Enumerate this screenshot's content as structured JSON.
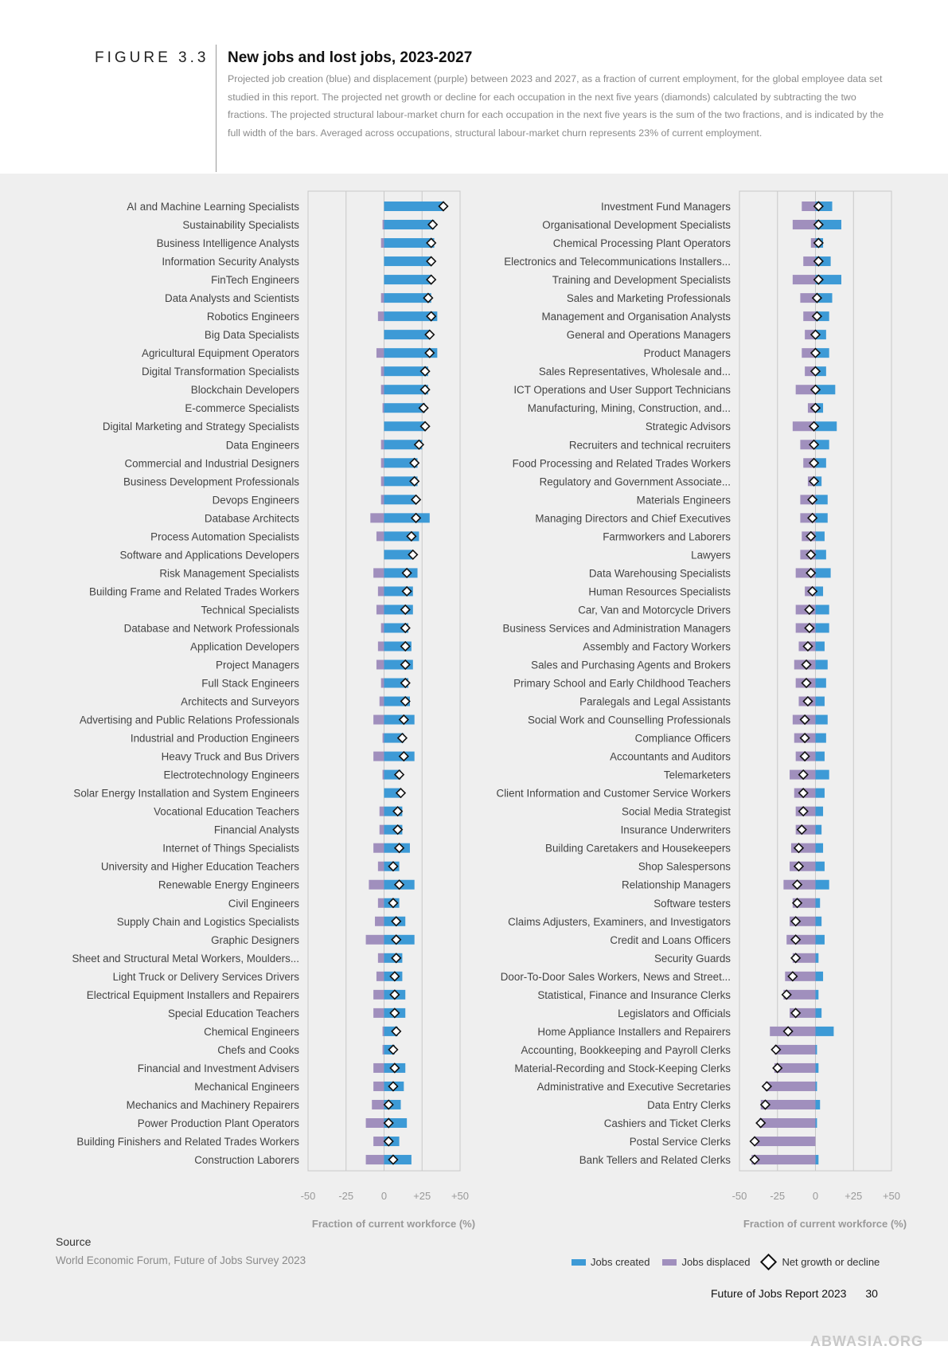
{
  "figure_label": "FIGURE 3.3",
  "title": "New jobs and lost jobs, 2023-2027",
  "subtitle": "Projected job creation (blue) and displacement (purple) between 2023 and 2027, as a fraction of current employment, for the global employee data set studied in this report. The projected net growth or decline for each occupation in the next five years (diamonds) calculated by subtracting the two fractions. The projected structural labour-market churn for each occupation in the next five years is the sum of the two fractions, and is indicated by the full width of the bars. Averaged across occupations, structural labour-market churn represents 23% of current employment.",
  "source_heading": "Source",
  "source_text": "World Economic Forum, Future of Jobs Survey 2023",
  "legend": {
    "created": "Jobs created",
    "displaced": "Jobs displaced",
    "net": "Net growth or decline"
  },
  "footer": {
    "report": "Future of Jobs Report 2023",
    "page": "30"
  },
  "watermark": "ABWASIA.ORG",
  "colors": {
    "created": "#3d9ad6",
    "displaced": "#a08fbd",
    "background": "#efefef"
  },
  "chart_data": [
    {
      "type": "bar",
      "xlabel": "Fraction of current workforce (%)",
      "xlim": [
        -50,
        50
      ],
      "xticks": [
        "-50",
        "-25",
        "0",
        "+25",
        "+50"
      ],
      "categories": [
        "AI and Machine Learning Specialists",
        "Sustainability Specialists",
        "Business Intelligence Analysts",
        "Information Security Analysts",
        "FinTech Engineers",
        "Data Analysts and Scientists",
        "Robotics Engineers",
        "Big Data Specialists",
        "Agricultural Equipment Operators",
        "Digital Transformation Specialists",
        "Blockchain Developers",
        "E-commerce Specialists",
        "Digital Marketing and Strategy Specialists",
        "Data Engineers",
        "Commercial and Industrial Designers",
        "Business Development Professionals",
        "Devops Engineers",
        "Database Architects",
        "Process Automation Specialists",
        "Software and Applications Developers",
        "Risk Management Specialists",
        "Building Frame and Related Trades Workers",
        "Technical Specialists",
        "Database and Network Professionals",
        "Application Developers",
        "Project Managers",
        "Full Stack Engineers",
        "Architects and Surveyors",
        "Advertising and Public Relations Professionals",
        "Industrial and Production Engineers",
        "Heavy Truck and Bus Drivers",
        "Electrotechnology Engineers",
        "Solar Energy Installation and System Engineers",
        "Vocational Education Teachers",
        "Financial Analysts",
        "Internet of Things Specialists",
        "University and Higher Education Teachers",
        "Renewable Energy Engineers",
        "Civil Engineers",
        "Supply Chain and Logistics Specialists",
        "Graphic Designers",
        "Sheet and Structural Metal Workers, Moulders...",
        "Light Truck or Delivery Services Drivers",
        "Electrical Equipment Installers and Repairers",
        "Special Education Teachers",
        "Chemical Engineers",
        "Chefs and Cooks",
        "Financial and Investment Advisers",
        "Mechanical Engineers",
        "Mechanics and Machinery Repairers",
        "Power Production Plant Operators",
        "Building Finishers and Related Trades Workers",
        "Construction Laborers"
      ],
      "series": [
        {
          "name": "Jobs created",
          "values": [
            39,
            33,
            33,
            31,
            31,
            31,
            35,
            30,
            35,
            29,
            29,
            27,
            27,
            25,
            22,
            22,
            21,
            30,
            23,
            19,
            22,
            19,
            19,
            16,
            18,
            19,
            16,
            17,
            20,
            13,
            20,
            11,
            11,
            12,
            12,
            17,
            10,
            20,
            10,
            14,
            20,
            12,
            12,
            14,
            14,
            9,
            7,
            14,
            13,
            11,
            15,
            10,
            18
          ]
        },
        {
          "name": "Jobs displaced",
          "values": [
            0,
            1,
            2,
            0,
            0,
            2,
            4,
            0,
            5,
            2,
            2,
            1,
            0,
            2,
            2,
            2,
            2,
            9,
            5,
            0,
            7,
            4,
            5,
            2,
            4,
            5,
            2,
            3,
            7,
            1,
            7,
            1,
            0,
            3,
            3,
            7,
            4,
            10,
            4,
            6,
            12,
            4,
            5,
            7,
            7,
            1,
            1,
            7,
            7,
            8,
            12,
            7,
            12
          ]
        },
        {
          "name": "Net growth or decline",
          "values": [
            39,
            32,
            31,
            31,
            31,
            29,
            31,
            30,
            30,
            27,
            27,
            26,
            27,
            23,
            20,
            20,
            21,
            21,
            18,
            19,
            15,
            15,
            14,
            14,
            14,
            14,
            14,
            14,
            13,
            12,
            13,
            10,
            11,
            9,
            9,
            10,
            6,
            10,
            6,
            8,
            8,
            8,
            7,
            7,
            7,
            8,
            6,
            7,
            6,
            3,
            3,
            3,
            6
          ]
        }
      ]
    },
    {
      "type": "bar",
      "xlabel": "Fraction of current workforce (%)",
      "xlim": [
        -50,
        50
      ],
      "xticks": [
        "-50",
        "-25",
        "0",
        "+25",
        "+50"
      ],
      "categories": [
        "Investment Fund Managers",
        "Organisational Development Specialists",
        "Chemical Processing Plant Operators",
        "Electronics and Telecommunications Installers...",
        "Training and Development Specialists",
        "Sales and Marketing Professionals",
        "Management and Organisation Analysts",
        "General and Operations Managers",
        "Product Managers",
        "Sales Representatives, Wholesale and...",
        "ICT Operations and User Support Technicians",
        "Manufacturing, Mining, Construction, and...",
        "Strategic Advisors",
        "Recruiters and technical recruiters",
        "Food Processing and Related Trades Workers",
        "Regulatory and Government Associate...",
        "Materials Engineers",
        "Managing Directors and Chief Executives",
        "Farmworkers and Laborers",
        "Lawyers",
        "Data Warehousing Specialists",
        "Human Resources Specialists",
        "Car, Van and Motorcycle Drivers",
        "Business Services and Administration Managers",
        "Assembly and Factory Workers",
        "Sales and Purchasing Agents and Brokers",
        "Primary School and Early Childhood Teachers",
        "Paralegals and Legal Assistants",
        "Social Work and Counselling Professionals",
        "Compliance Officers",
        "Accountants and Auditors",
        "Telemarketers",
        "Client Information and Customer Service Workers",
        "Social Media Strategist",
        "Insurance Underwriters",
        "Building Caretakers and Housekeepers",
        "Shop Salespersons",
        "Relationship Managers",
        "Software testers",
        "Claims Adjusters, Examiners, and Investigators",
        "Credit and Loans Officers",
        "Security Guards",
        "Door-To-Door Sales Workers, News and Street...",
        "Statistical, Finance and Insurance Clerks",
        "Legislators and Officials",
        "Home Appliance Installers and Repairers",
        "Accounting, Bookkeeping and Payroll Clerks",
        "Material-Recording and Stock-Keeping Clerks",
        "Administrative and Executive Secretaries",
        "Data Entry Clerks",
        "Cashiers and Ticket Clerks",
        "Postal Service Clerks",
        "Bank Tellers and Related Clerks"
      ],
      "series": [
        {
          "name": "Jobs created",
          "values": [
            11,
            17,
            5,
            10,
            17,
            11,
            9,
            7,
            9,
            7,
            13,
            5,
            14,
            9,
            7,
            4,
            8,
            8,
            6,
            7,
            10,
            5,
            9,
            9,
            6,
            8,
            7,
            6,
            8,
            7,
            6,
            9,
            6,
            5,
            4,
            5,
            6,
            9,
            3,
            4,
            6,
            2,
            5,
            2,
            4,
            12,
            1,
            2,
            1,
            3,
            1,
            0,
            2
          ]
        },
        {
          "name": "Jobs displaced",
          "values": [
            9,
            15,
            3,
            8,
            15,
            10,
            8,
            7,
            9,
            7,
            13,
            5,
            15,
            10,
            8,
            5,
            10,
            10,
            9,
            10,
            13,
            7,
            13,
            13,
            11,
            14,
            13,
            11,
            15,
            14,
            13,
            17,
            14,
            13,
            13,
            16,
            17,
            21,
            15,
            17,
            19,
            15,
            20,
            21,
            17,
            30,
            27,
            27,
            33,
            36,
            37,
            40,
            42
          ]
        },
        {
          "name": "Net growth or decline",
          "values": [
            2,
            2,
            2,
            2,
            2,
            1,
            1,
            0,
            0,
            0,
            0,
            0,
            -1,
            -1,
            -1,
            -1,
            -2,
            -2,
            -3,
            -3,
            -3,
            -2,
            -4,
            -4,
            -5,
            -6,
            -6,
            -5,
            -7,
            -7,
            -7,
            -8,
            -8,
            -8,
            -9,
            -11,
            -11,
            -12,
            -12,
            -13,
            -13,
            -13,
            -15,
            -19,
            -13,
            -18,
            -26,
            -25,
            -32,
            -33,
            -36,
            -40,
            -40
          ]
        }
      ]
    }
  ]
}
